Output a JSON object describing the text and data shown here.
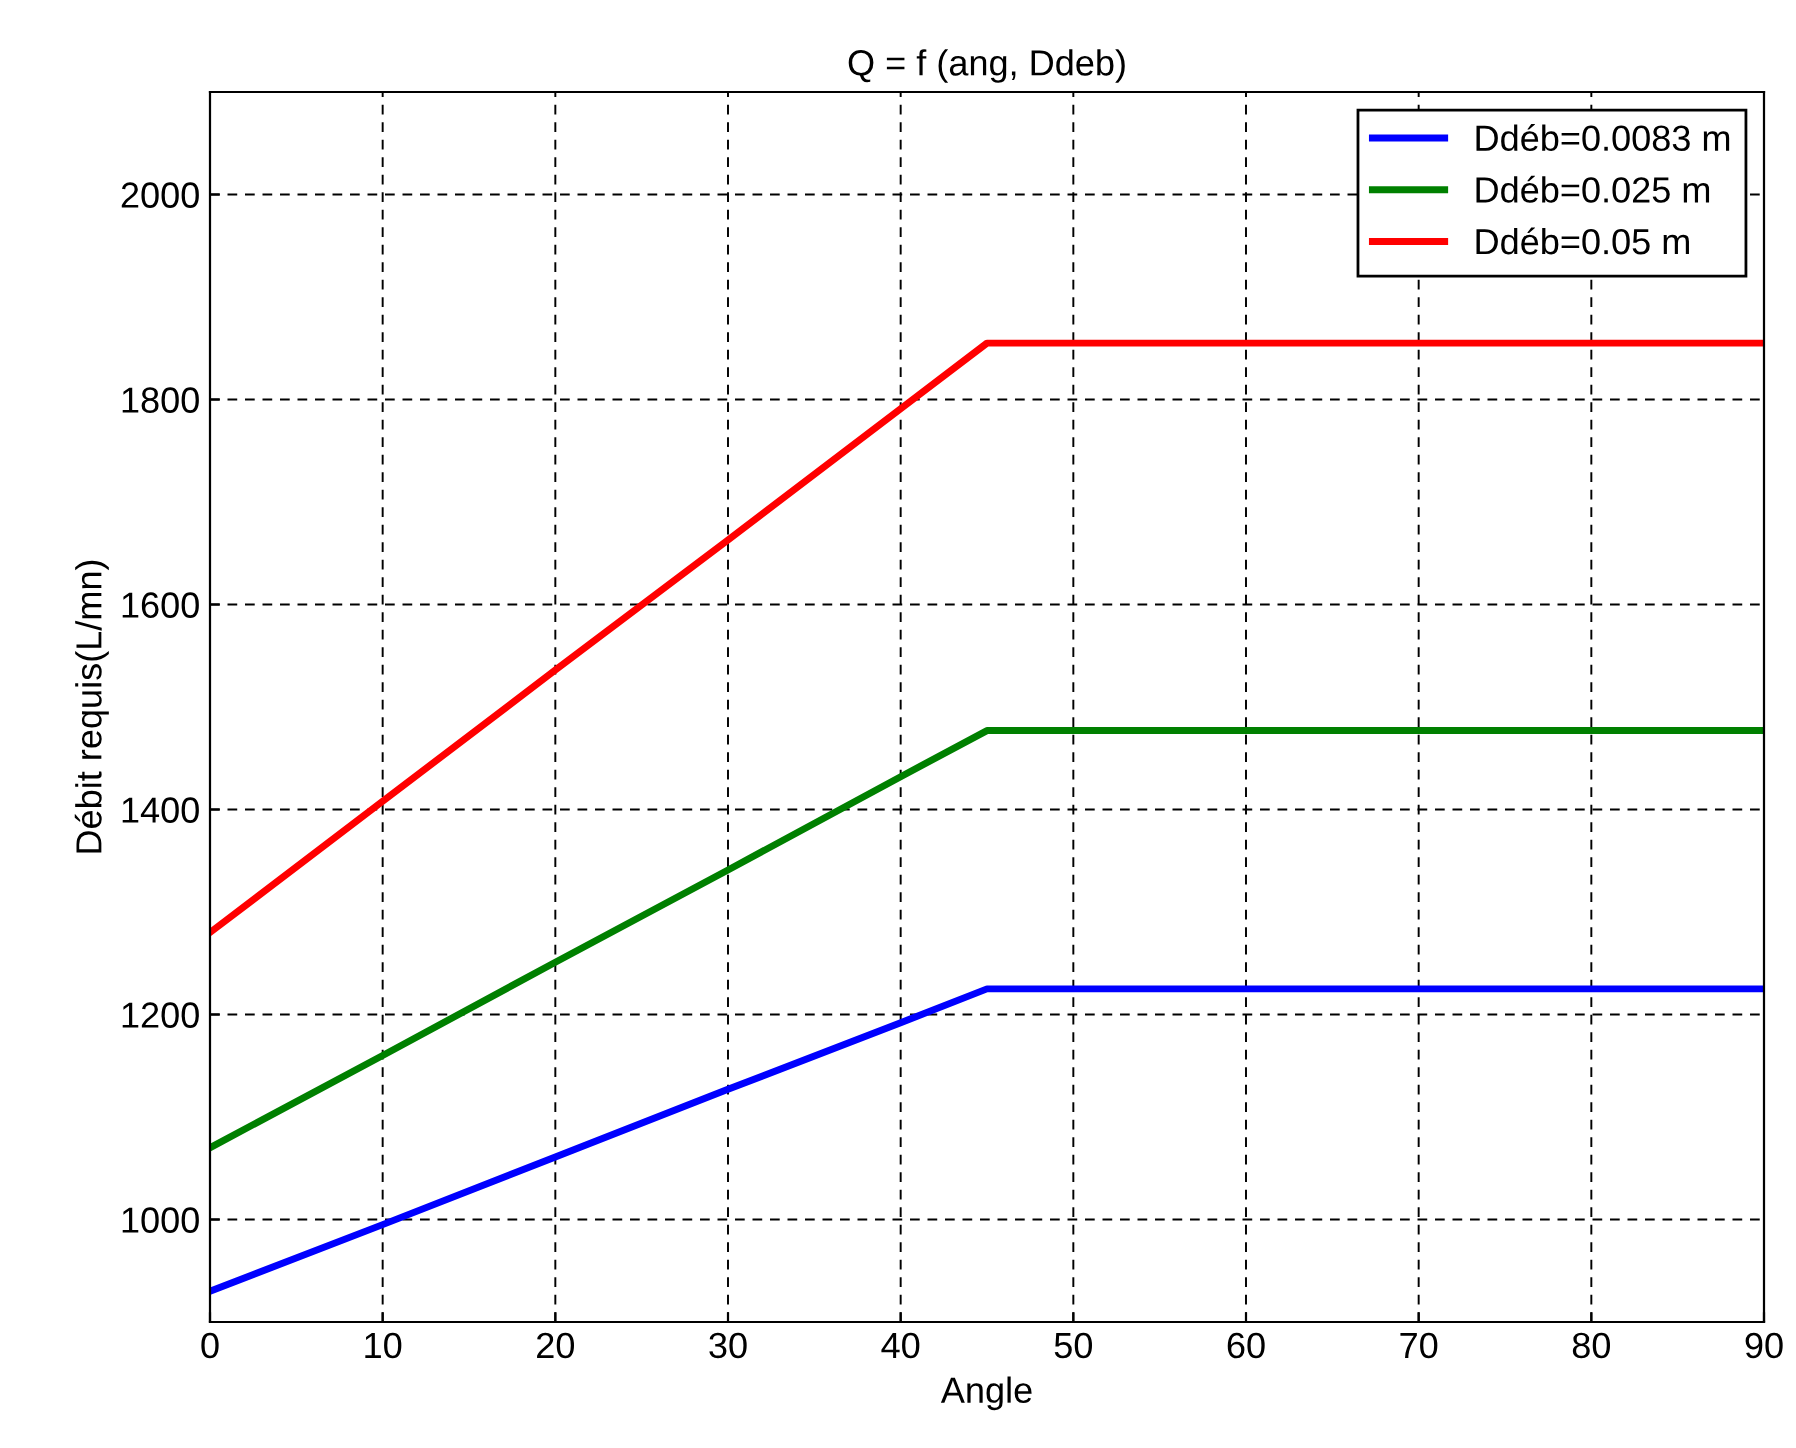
{
  "chart_data": {
    "type": "line",
    "title": "Q = f (ang, Ddeb)",
    "xlabel": "Angle",
    "ylabel": "Débit requis(L/mn)",
    "xlim": [
      0,
      90
    ],
    "ylim": [
      900,
      2100
    ],
    "xticks": [
      0,
      10,
      20,
      30,
      40,
      50,
      60,
      70,
      80,
      90
    ],
    "yticks": [
      1000,
      1200,
      1400,
      1600,
      1800,
      2000
    ],
    "grid": true,
    "legend": "top right",
    "marker": "none",
    "line_style": "solid",
    "series": [
      {
        "name": "Ddéb=0.0083 m",
        "color": "#0000ff",
        "x": [
          0,
          10,
          20,
          30,
          40,
          45,
          90
        ],
        "values": [
          930,
          995,
          1061,
          1127,
          1192,
          1225,
          1225
        ]
      },
      {
        "name": "Ddéb=0.025 m",
        "color": "#008000",
        "x": [
          0,
          10,
          20,
          30,
          40,
          45,
          90
        ],
        "values": [
          1070,
          1160,
          1251,
          1341,
          1432,
          1477,
          1477
        ]
      },
      {
        "name": "Ddéb=0.05 m",
        "color": "#ff0000",
        "x": [
          0,
          10,
          20,
          30,
          40,
          45,
          90
        ],
        "values": [
          1280,
          1408,
          1536,
          1663,
          1791,
          1855,
          1855
        ]
      }
    ]
  }
}
